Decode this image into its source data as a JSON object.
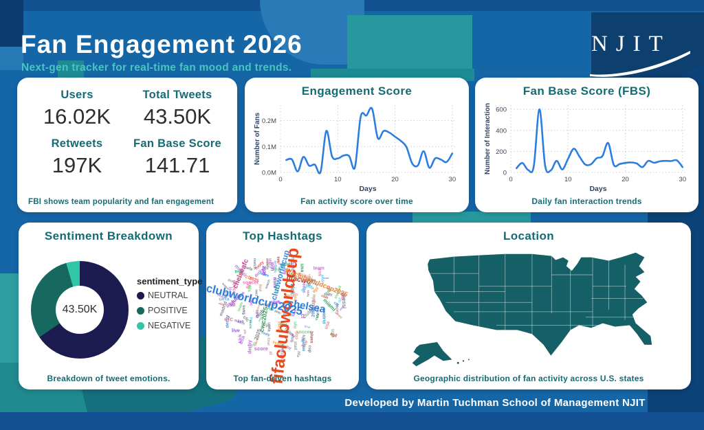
{
  "header": {
    "title": "Fan Engagement 2026",
    "subtitle": "Next-gen tracker for real-time fan mood and trends.",
    "brand": "NJIT"
  },
  "footer": {
    "credit": "Developed by Martin Tuchman School of Management NJIT"
  },
  "colors": {
    "accent_teal": "#156b74",
    "subtitle_teal": "#49c5bf",
    "line_blue": "#2a7de1",
    "map_fill": "#155f66",
    "neutral_navy": "#1b1b4f",
    "positive_teal": "#17685f",
    "negative_mint": "#2fc7a7",
    "background_blue": "#1566a7"
  },
  "stats": {
    "items": [
      {
        "label": "Users",
        "value": "16.02K"
      },
      {
        "label": "Total Tweets",
        "value": "43.50K"
      },
      {
        "label": "Retweets",
        "value": "197K"
      },
      {
        "label": "Fan Base Score",
        "value": "141.71"
      }
    ],
    "caption": "FBI shows team popularity and fan engagement"
  },
  "chart_data": [
    {
      "id": "engagement",
      "type": "line",
      "title": "Engagement Score",
      "xlabel": "Days",
      "ylabel": "Number of Fans",
      "caption": "Fan activity score over time",
      "x": [
        1,
        2,
        3,
        4,
        5,
        6,
        7,
        8,
        9,
        10,
        11,
        12,
        13,
        14,
        15,
        16,
        17,
        18,
        19,
        20,
        21,
        22,
        23,
        24,
        25,
        26,
        27,
        28,
        29,
        30
      ],
      "values": [
        0.048,
        0.05,
        0.004,
        0.06,
        0.026,
        0.03,
        0.002,
        0.16,
        0.062,
        0.054,
        0.065,
        0.063,
        0.02,
        0.215,
        0.22,
        0.246,
        0.132,
        0.16,
        0.154,
        0.138,
        0.122,
        0.098,
        0.035,
        0.027,
        0.082,
        0.018,
        0.054,
        0.05,
        0.04,
        0.073
      ],
      "ylim": [
        0,
        0.26
      ],
      "xlim": [
        0,
        30.5
      ],
      "yticks": [
        0,
        0.1,
        0.2
      ],
      "ytick_labels": [
        "0.0M",
        "0.1M",
        "0.2M"
      ],
      "xticks": [
        0,
        10,
        20,
        30
      ],
      "grid": "dotted",
      "line_color": "#2a7de1"
    },
    {
      "id": "fbs",
      "type": "line",
      "title": "Fan Base Score (FBS)",
      "xlabel": "Days",
      "ylabel": "Number of Interaction",
      "caption": "Daily fan interaction trends",
      "x": [
        1,
        2,
        3,
        4,
        5,
        6,
        7,
        8,
        9,
        10,
        11,
        12,
        13,
        14,
        15,
        16,
        17,
        18,
        19,
        20,
        21,
        22,
        23,
        24,
        25,
        26,
        27,
        28,
        29,
        30
      ],
      "values": [
        40,
        90,
        25,
        55,
        600,
        60,
        20,
        110,
        28,
        130,
        225,
        150,
        75,
        78,
        135,
        155,
        280,
        70,
        80,
        90,
        95,
        85,
        50,
        110,
        92,
        105,
        110,
        108,
        115,
        50
      ],
      "ylim": [
        0,
        640
      ],
      "xlim": [
        0,
        30.5
      ],
      "yticks": [
        0,
        200,
        400,
        600
      ],
      "ytick_labels": [
        "0",
        "200",
        "400",
        "600"
      ],
      "xticks": [
        0,
        10,
        20,
        30
      ],
      "grid": "dotted",
      "line_color": "#2a7de1"
    },
    {
      "id": "sentiment",
      "type": "donut",
      "title": "Sentiment Breakdown",
      "caption": "Breakdown of tweet emotions.",
      "center_label": "43.50K",
      "legend_title": "sentiment_type",
      "slices": [
        {
          "label": "NEUTRAL",
          "pct": 65.5,
          "color": "#1b1b4f"
        },
        {
          "label": "POSITIVE",
          "pct": 30.0,
          "color": "#17685f"
        },
        {
          "label": "NEGATIVE",
          "pct": 4.5,
          "color": "#2fc7a7"
        }
      ]
    },
    {
      "id": "hashtags",
      "type": "wordcloud",
      "title": "Top Hashtags",
      "caption": "Top fan-driven hashtags",
      "words": [
        {
          "text": "fifaclubworldcup",
          "size": 25,
          "color": "#e84a1f",
          "rot": -83,
          "x": 52,
          "y": 55
        },
        {
          "text": "clubworldcup2025",
          "size": 16.5,
          "color": "#2e7ed8",
          "rot": 14,
          "x": 30,
          "y": 42
        },
        {
          "text": "chelsea",
          "size": 15,
          "color": "#2e7ed8",
          "rot": 10,
          "x": 67,
          "y": 47
        },
        {
          "text": "clubworldcup",
          "size": 11.5,
          "color": "#3b8ae0",
          "rot": -75,
          "x": 49,
          "y": 22
        },
        {
          "text": "fifacwc",
          "size": 10.5,
          "color": "#b3402e",
          "rot": 12,
          "x": 61,
          "y": 25
        },
        {
          "text": "fifaclubworldcup2025",
          "size": 9.5,
          "color": "#e8823c",
          "rot": 22,
          "x": 74,
          "y": 28
        },
        {
          "text": "chelseafc",
          "size": 10,
          "color": "#c2458f",
          "rot": -68,
          "x": 21,
          "y": 21
        },
        {
          "text": "cwc2025",
          "size": 9,
          "color": "#3a9a5f",
          "rot": -80,
          "x": 37,
          "y": 58
        },
        {
          "text": "cfc",
          "size": 9,
          "color": "#e87fb0",
          "rot": 0,
          "x": 12,
          "y": 58
        }
      ],
      "noise_words": [
        "fifa",
        "cwc",
        "match",
        "goal",
        "fans",
        "club",
        "cup",
        "final",
        "team",
        "win",
        "usa",
        "2025",
        "messi",
        "psg",
        "madrid",
        "miami",
        "soccer",
        "derby",
        "live",
        "score",
        "kick",
        "blues",
        "uefa",
        "epl",
        "footy",
        "stad",
        "league",
        "cl",
        "nyc",
        "cfc"
      ],
      "noise_colors": [
        "#9aa0a6",
        "#b085d6",
        "#7fd17f",
        "#e87fb0",
        "#7fb3e8",
        "#e8a07f",
        "#808891",
        "#6fcf97",
        "#f2994a",
        "#bb6bd9",
        "#56ccf2",
        "#27ae60",
        "#eb5757",
        "#9b51e0",
        "#2d9cdb",
        "#c0564a",
        "#747c85",
        "#4f8fd0",
        "#d08888",
        "#8888aa"
      ]
    },
    {
      "id": "location",
      "type": "map",
      "title": "Location",
      "caption": "Geographic distribution of fan activity across U.S. states",
      "region": "United States",
      "fill": "#155f66"
    }
  ]
}
